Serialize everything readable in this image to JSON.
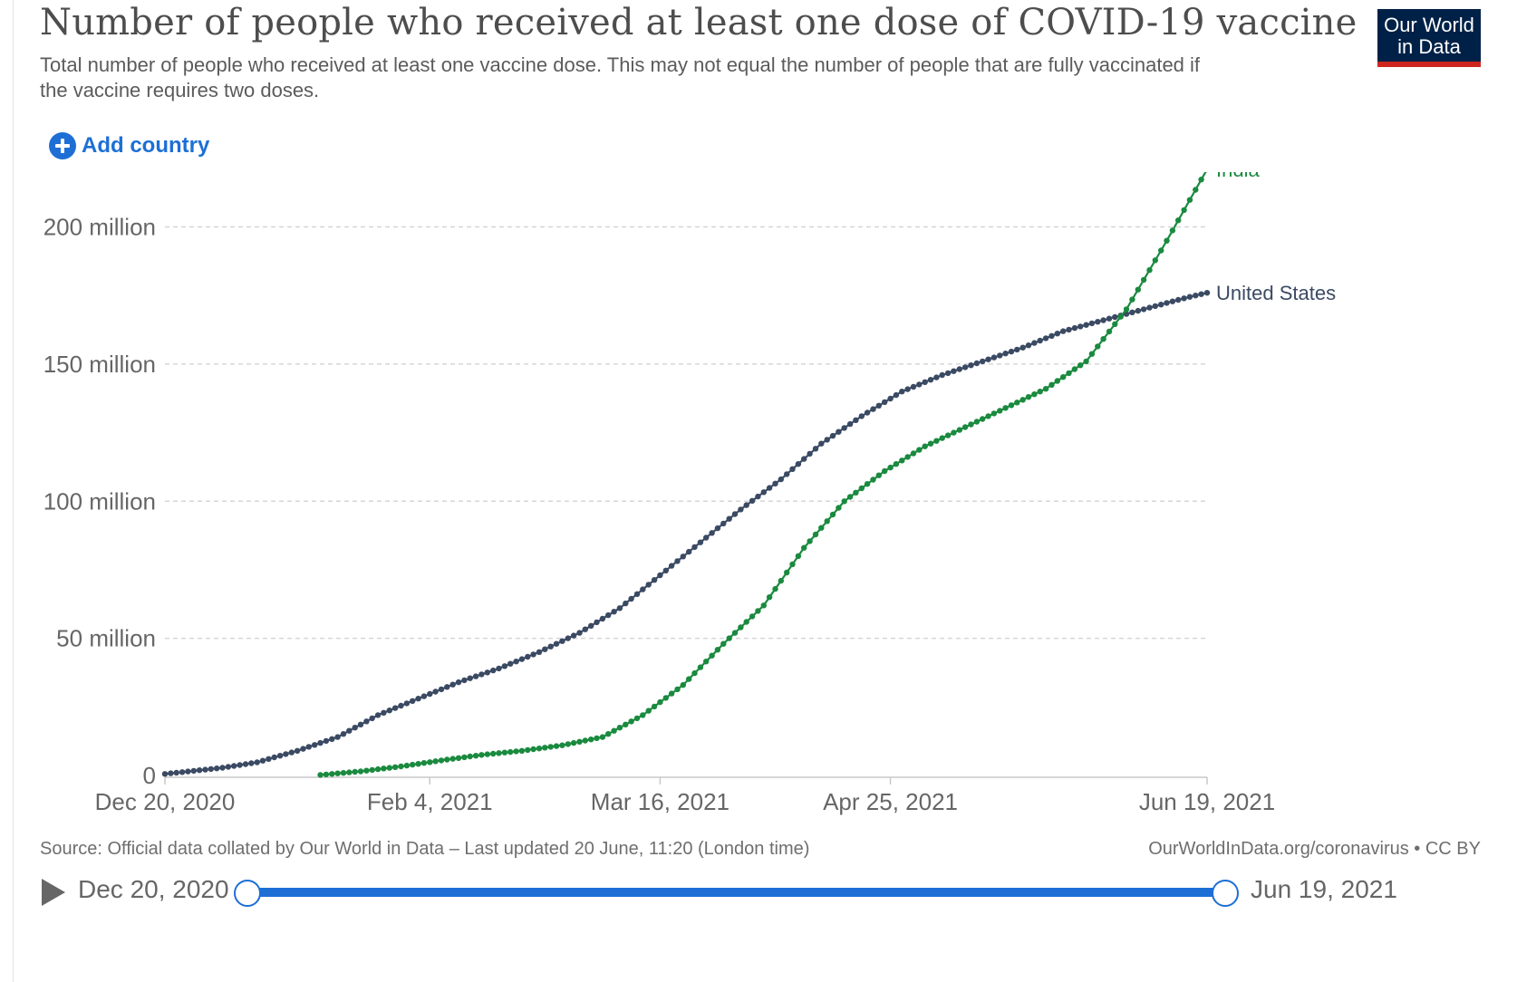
{
  "header": {
    "title": "Number of people who received at least one dose of COVID-19 vaccine",
    "subtitle": "Total number of people who received at least one vaccine dose. This may not equal the number of people that are fully vaccinated if the vaccine requires two doses.",
    "logo_line1": "Our World",
    "logo_line2": "in Data",
    "add_country_label": "Add country"
  },
  "footer": {
    "source": "Source: Official data collated by Our World in Data – Last updated 20 June, 11:20 (London time)",
    "url": "OurWorldInData.org/coronavirus • CC BY"
  },
  "timeline": {
    "start_label": "Dec 20, 2020",
    "end_label": "Jun 19, 2021",
    "start_fraction": 0,
    "end_fraction": 1
  },
  "colors": {
    "india": "#1a8a3f",
    "united_states": "#3b4a63",
    "accent": "#1d6fd6",
    "grid": "#d6d6d6"
  },
  "chart_data": {
    "type": "line",
    "title": "Number of people who received at least one dose of COVID-19 vaccine",
    "xlabel": "",
    "ylabel": "",
    "x_range": [
      "2020-12-20",
      "2021-06-19"
    ],
    "ylim": [
      0,
      220000000
    ],
    "y_ticks": [
      0,
      50000000,
      100000000,
      150000000,
      200000000
    ],
    "y_tick_labels": [
      "0",
      "50 million",
      "100 million",
      "150 million",
      "200 million"
    ],
    "x_ticks": [
      "2020-12-20",
      "2021-02-04",
      "2021-03-16",
      "2021-04-25",
      "2021-06-19"
    ],
    "x_tick_labels": [
      "Dec 20, 2020",
      "Feb 4, 2021",
      "Mar 16, 2021",
      "Apr 25, 2021",
      "Jun 19, 2021"
    ],
    "grid": true,
    "legend": "inline labels at line ends",
    "series": [
      {
        "name": "United States",
        "color": "#3b4a63",
        "points": [
          [
            "2020-12-20",
            556000
          ],
          [
            "2020-12-26",
            1900000
          ],
          [
            "2020-12-30",
            2800000
          ],
          [
            "2021-01-05",
            4800000
          ],
          [
            "2021-01-12",
            9000000
          ],
          [
            "2021-01-19",
            14000000
          ],
          [
            "2021-01-26",
            22000000
          ],
          [
            "2021-02-02",
            28000000
          ],
          [
            "2021-02-09",
            34000000
          ],
          [
            "2021-02-16",
            39000000
          ],
          [
            "2021-02-23",
            45000000
          ],
          [
            "2021-03-02",
            52000000
          ],
          [
            "2021-03-09",
            61000000
          ],
          [
            "2021-03-16",
            73000000
          ],
          [
            "2021-03-23",
            85000000
          ],
          [
            "2021-03-30",
            97000000
          ],
          [
            "2021-04-06",
            108000000
          ],
          [
            "2021-04-13",
            121000000
          ],
          [
            "2021-04-20",
            131000000
          ],
          [
            "2021-04-27",
            140000000
          ],
          [
            "2021-05-04",
            146000000
          ],
          [
            "2021-05-11",
            151000000
          ],
          [
            "2021-05-18",
            156000000
          ],
          [
            "2021-05-25",
            162000000
          ],
          [
            "2021-06-01",
            166000000
          ],
          [
            "2021-06-08",
            170000000
          ],
          [
            "2021-06-15",
            174000000
          ],
          [
            "2021-06-19",
            176000000
          ]
        ]
      },
      {
        "name": "India",
        "color": "#1a8a3f",
        "points": [
          [
            "2021-01-16",
            191000
          ],
          [
            "2021-01-23",
            1500000
          ],
          [
            "2021-01-30",
            3300000
          ],
          [
            "2021-02-06",
            5500000
          ],
          [
            "2021-02-13",
            7500000
          ],
          [
            "2021-02-20",
            9000000
          ],
          [
            "2021-02-27",
            11000000
          ],
          [
            "2021-03-06",
            14000000
          ],
          [
            "2021-03-13",
            22000000
          ],
          [
            "2021-03-20",
            33000000
          ],
          [
            "2021-03-27",
            48000000
          ],
          [
            "2021-04-03",
            62000000
          ],
          [
            "2021-04-10",
            83000000
          ],
          [
            "2021-04-17",
            100000000
          ],
          [
            "2021-04-24",
            111000000
          ],
          [
            "2021-05-01",
            120000000
          ],
          [
            "2021-05-08",
            127000000
          ],
          [
            "2021-05-15",
            134000000
          ],
          [
            "2021-05-22",
            141000000
          ],
          [
            "2021-05-29",
            151000000
          ],
          [
            "2021-06-05",
            170000000
          ],
          [
            "2021-06-12",
            195000000
          ],
          [
            "2021-06-19",
            221000000
          ]
        ]
      }
    ]
  }
}
